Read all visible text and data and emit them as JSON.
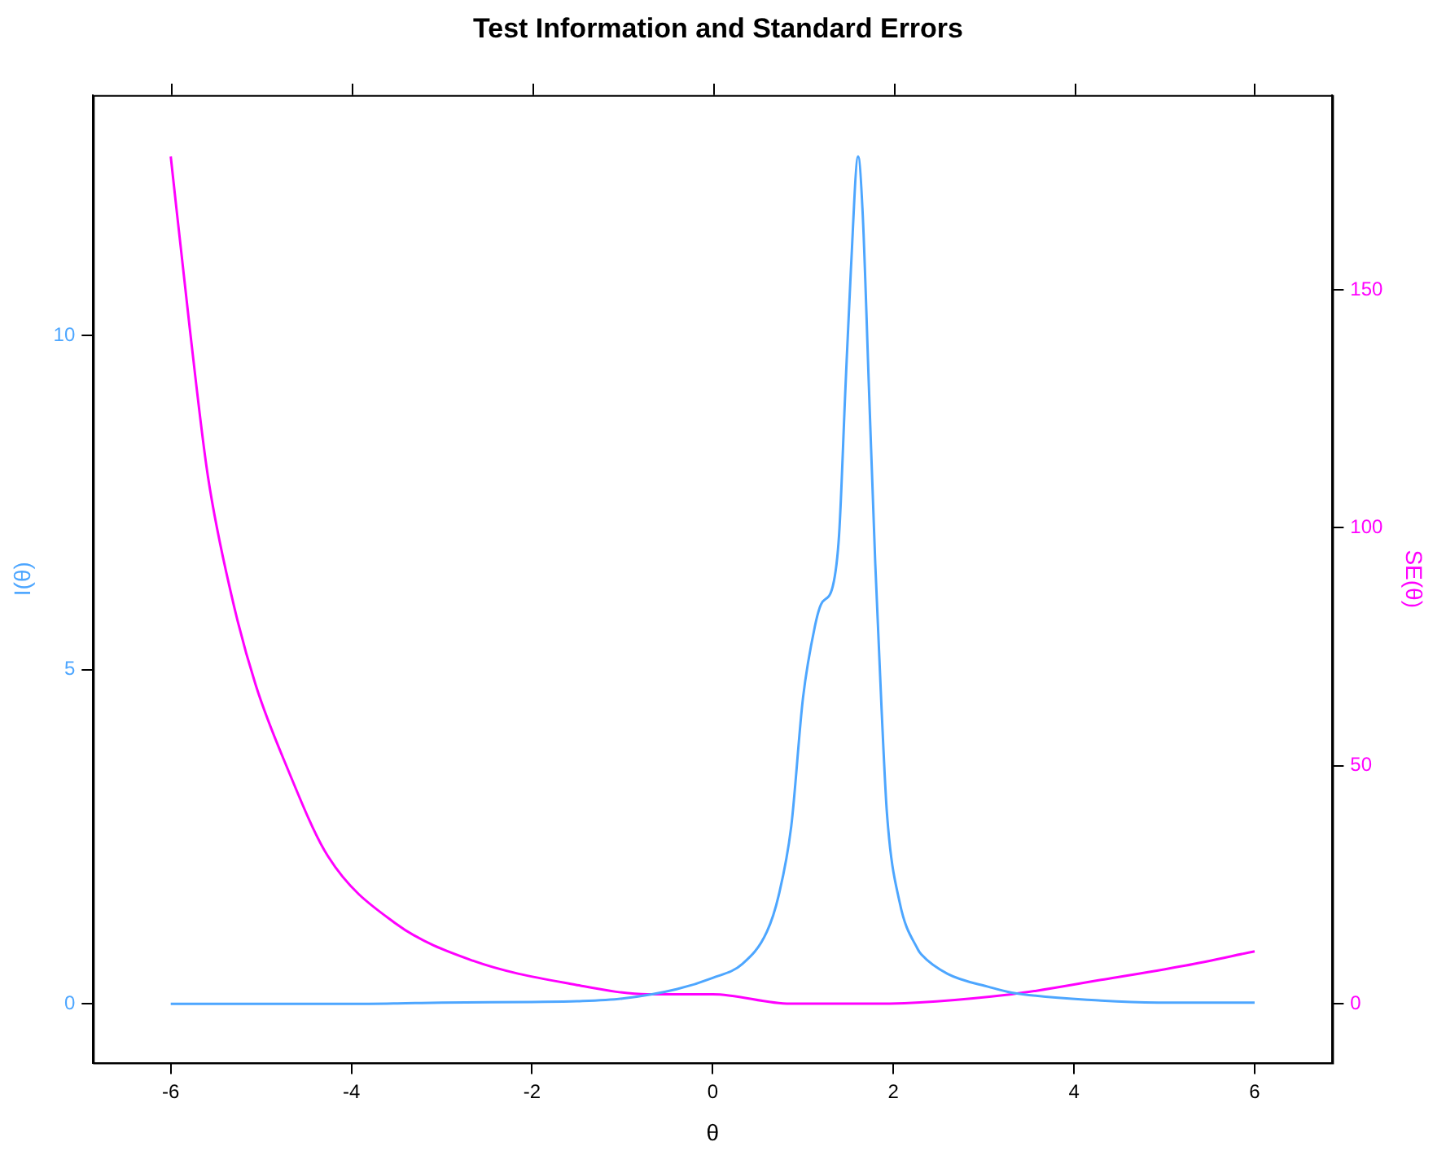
{
  "chart_data": {
    "type": "line",
    "title": "Test Information and Standard Errors",
    "xlabel": "θ",
    "ylabel": "I(θ)",
    "y2label": "SE(θ)",
    "xlim": [
      -6.86,
      6.86
    ],
    "xticks": [
      -6,
      -4,
      -2,
      0,
      2,
      4,
      6
    ],
    "ylim": [
      -0.88,
      13.6
    ],
    "yticks": [
      0,
      5,
      10
    ],
    "y2lim": [
      -12.4,
      190.9
    ],
    "y2ticks": [
      0,
      50,
      100,
      150
    ],
    "grid": false,
    "legend": false,
    "marker": "none",
    "line_style": "solid",
    "series": [
      {
        "name": null,
        "color": "#4da6ff",
        "x": [
          -6,
          -5,
          -4,
          -3.4,
          -3,
          -2,
          -1.5,
          -1,
          -0.4,
          0,
          0.33,
          0.6,
          0.73,
          0.87,
          1,
          1.13,
          1.2,
          1.33,
          1.4,
          1.47,
          1.53,
          1.61,
          1.66,
          1.73,
          1.8,
          1.87,
          1.93,
          2.07,
          2.27,
          2.31,
          2.6,
          3.07,
          3.31,
          4.3,
          4.93,
          6
        ],
        "values": [
          0,
          0,
          0,
          0.01,
          0.02,
          0.03,
          0.04,
          0.08,
          0.22,
          0.39,
          0.6,
          1.08,
          1.62,
          2.66,
          4.58,
          5.64,
          5.98,
          6.25,
          7.03,
          9.22,
          10.98,
          12.68,
          11.85,
          9.22,
          6.59,
          4.41,
          2.84,
          1.52,
          0.82,
          0.74,
          0.45,
          0.25,
          0.17,
          0.05,
          0.02,
          0.02
        ]
      },
      {
        "name": null,
        "color": "#ff00ff",
        "axis": "y2",
        "x": [
          -6,
          -5.79,
          -5.59,
          -5.33,
          -5.06,
          -4.72,
          -4.26,
          -3.52,
          -2.65,
          -1.52,
          -0.72,
          0,
          0.86,
          1.6,
          1.81,
          3.31,
          4.3,
          5.23,
          6
        ],
        "values": [
          178,
          142,
          111,
          86,
          67,
          50,
          31,
          17,
          9,
          4,
          2,
          2,
          0,
          0,
          0,
          2,
          5,
          8,
          11
        ]
      }
    ]
  }
}
